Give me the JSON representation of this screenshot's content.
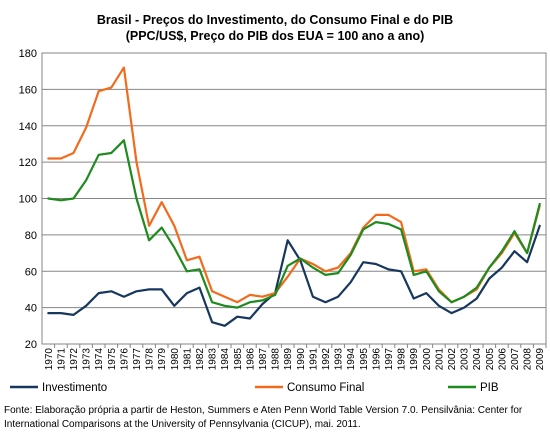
{
  "chart_data": {
    "type": "line",
    "title": "Brasil - Preços do Investimento, do Consumo Final e do PIB",
    "subtitle": "(PPC/US$, Preço do PIB dos EUA = 100 ano a ano)",
    "xlabel": "",
    "ylabel": "",
    "x": [
      "1970",
      "1971",
      "1972",
      "1973",
      "1974",
      "1975",
      "1976",
      "1977",
      "1978",
      "1979",
      "1980",
      "1981",
      "1982",
      "1983",
      "1984",
      "1985",
      "1986",
      "1987",
      "1988",
      "1989",
      "1990",
      "1991",
      "1992",
      "1993",
      "1994",
      "1995",
      "1996",
      "1997",
      "1998",
      "1999",
      "2000",
      "2001",
      "2002",
      "2003",
      "2004",
      "2005",
      "2006",
      "2007",
      "2008",
      "2009"
    ],
    "ylim": [
      20,
      180
    ],
    "yticks": [
      "20",
      "40",
      "60",
      "80",
      "100",
      "120",
      "140",
      "160",
      "180"
    ],
    "grid": "horizontal",
    "legend_position": "bottom",
    "series": [
      {
        "name": "Investimento",
        "color": "#17375E",
        "values": [
          37,
          37,
          36,
          41,
          48,
          49,
          46,
          49,
          50,
          50,
          41,
          48,
          51,
          32,
          30,
          35,
          34,
          42,
          48,
          77,
          66,
          46,
          43,
          46,
          54,
          65,
          64,
          61,
          60,
          45,
          48,
          41,
          37,
          40,
          45,
          56,
          62,
          71,
          65,
          85
        ]
      },
      {
        "name": "Consumo Final",
        "color": "#F26B1D",
        "values": [
          122,
          122,
          125,
          139,
          159,
          161,
          172,
          120,
          85,
          98,
          85,
          66,
          68,
          49,
          46,
          43,
          47,
          46,
          48,
          57,
          67,
          64,
          60,
          62,
          70,
          84,
          91,
          91,
          87,
          60,
          61,
          50,
          43,
          46,
          50,
          62,
          70,
          81,
          70,
          96
        ]
      },
      {
        "name": "PIB",
        "color": "#1E8B1E",
        "values": [
          100,
          99,
          100,
          110,
          124,
          125,
          132,
          100,
          77,
          84,
          73,
          60,
          61,
          43,
          41,
          40,
          43,
          44,
          47,
          63,
          67,
          62,
          58,
          59,
          69,
          83,
          87,
          86,
          83,
          58,
          60,
          49,
          43,
          46,
          51,
          62,
          71,
          82,
          70,
          97
        ]
      }
    ]
  },
  "source_note": "Fonte: Elaboração própria a partir de Heston, Summers e Aten Penn World Table Version 7.0. Pensilvânia: Center for International Comparisons at the University of Pennsylvania (CICUP), mai. 2011."
}
